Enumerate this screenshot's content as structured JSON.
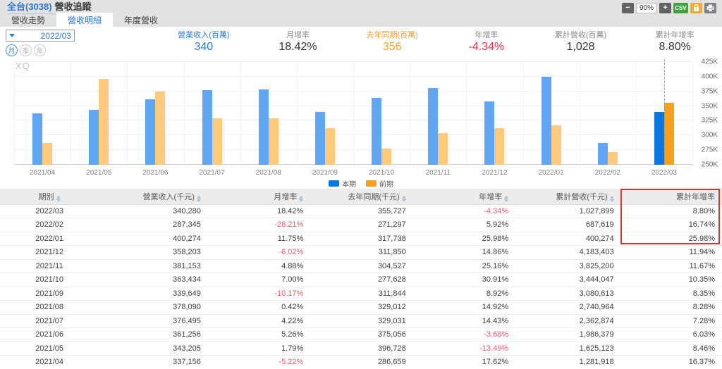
{
  "window": {
    "title_stock": "全台(3038)",
    "title_page": "營收追蹤",
    "watermark": "XQ"
  },
  "toolbar": {
    "zoom_out": "−",
    "zoom_level": "90%",
    "zoom_in": "+",
    "csv": "CSV"
  },
  "tabs": [
    {
      "label": "營收走勢",
      "active": false
    },
    {
      "label": "營收明細",
      "active": true
    },
    {
      "label": "年度營收",
      "active": false
    }
  ],
  "controls": {
    "date_value": "2022/03",
    "period_buttons": [
      {
        "label": "月",
        "active": true
      },
      {
        "label": "季",
        "active": false
      },
      {
        "label": "年",
        "active": false
      }
    ]
  },
  "stats": [
    {
      "label": "營業收入(百萬)",
      "value": "340",
      "label_color": "#2e7bd6",
      "value_color": "#2e7bd6"
    },
    {
      "label": "月增率",
      "value": "18.42%",
      "label_color": "#8a8a8a",
      "value_color": "#333333"
    },
    {
      "label": "去年同期(百萬)",
      "value": "356",
      "label_color": "#f7a12f",
      "value_color": "#f7a12f"
    },
    {
      "label": "年增率",
      "value": "-4.34%",
      "label_color": "#8a8a8a",
      "value_color": "#ee3048"
    },
    {
      "label": "累計營收(百萬)",
      "value": "1,028",
      "label_color": "#8a8a8a",
      "value_color": "#333333"
    },
    {
      "label": "累計年增率",
      "value": "8.80%",
      "label_color": "#8a8a8a",
      "value_color": "#333333"
    }
  ],
  "chart_data": {
    "type": "bar",
    "title": "",
    "categories": [
      "2021/04",
      "2021/05",
      "2021/06",
      "2021/07",
      "2021/08",
      "2021/09",
      "2021/10",
      "2021/11",
      "2021/12",
      "2022/01",
      "2022/02",
      "2022/03"
    ],
    "series": [
      {
        "name": "本期",
        "color": "#61a6f2",
        "highlight_color": "#0877e0",
        "values": [
          337156,
          343205,
          361256,
          376495,
          378090,
          339649,
          363434,
          381153,
          358203,
          400274,
          287345,
          340280
        ]
      },
      {
        "name": "前期",
        "color": "#fdca7e",
        "highlight_color": "#f7a01d",
        "values": [
          286659,
          396728,
          375056,
          329031,
          329012,
          311844,
          277628,
          304527,
          311850,
          317738,
          271297,
          355727
        ]
      }
    ],
    "ylim": [
      250000,
      425000
    ],
    "y_ticks": [
      "250K",
      "275K",
      "300K",
      "325K",
      "350K",
      "375K",
      "400K",
      "425K"
    ],
    "highlight_index": 11,
    "grid": true,
    "legend_position": "bottom"
  },
  "legend": [
    {
      "label": "本期",
      "color": "#0877e0"
    },
    {
      "label": "前期",
      "color": "#f7a01d"
    }
  ],
  "table": {
    "columns": [
      "期別",
      "營業收入(千元)",
      "月增率",
      "去年同期(千元)",
      "年增率",
      "累計營收(千元)",
      "累計年增率"
    ],
    "col_widths": [
      "13.7%",
      "15.1%",
      "14.2%",
      "14.2%",
      "14.2%",
      "14.6%",
      "14%"
    ],
    "rows": [
      [
        "2022/03",
        "340,280",
        "18.42%",
        "355,727",
        "-4.34%",
        "1,027,899",
        "8.80%"
      ],
      [
        "2022/02",
        "287,345",
        "-28.21%",
        "271,297",
        "5.92%",
        "687,619",
        "16.74%"
      ],
      [
        "2022/01",
        "400,274",
        "11.75%",
        "317,738",
        "25.98%",
        "400,274",
        "25.98%"
      ],
      [
        "2021/12",
        "358,203",
        "-6.02%",
        "311,850",
        "14.86%",
        "4,183,403",
        "11.94%"
      ],
      [
        "2021/11",
        "381,153",
        "4.88%",
        "304,527",
        "25.16%",
        "3,825,200",
        "11.67%"
      ],
      [
        "2021/10",
        "363,434",
        "7.00%",
        "277,628",
        "30.91%",
        "3,444,047",
        "10.35%"
      ],
      [
        "2021/09",
        "339,649",
        "-10.17%",
        "311,844",
        "8.92%",
        "3,080,613",
        "8.35%"
      ],
      [
        "2021/08",
        "378,090",
        "0.42%",
        "329,012",
        "14.92%",
        "2,740,964",
        "8.28%"
      ],
      [
        "2021/07",
        "376,495",
        "4.22%",
        "329,031",
        "14.43%",
        "2,362,874",
        "7.28%"
      ],
      [
        "2021/06",
        "361,256",
        "5.26%",
        "375,056",
        "-3.68%",
        "1,986,379",
        "6.03%"
      ],
      [
        "2021/05",
        "343,205",
        "1.79%",
        "396,728",
        "-13.49%",
        "1,625,123",
        "8.46%"
      ],
      [
        "2021/04",
        "337,156",
        "-5.22%",
        "286,659",
        "17.62%",
        "1,281,918",
        "16.37%"
      ]
    ],
    "highlight_box": {
      "column_index": 6,
      "row_count": 3,
      "color": "#e23030"
    }
  }
}
